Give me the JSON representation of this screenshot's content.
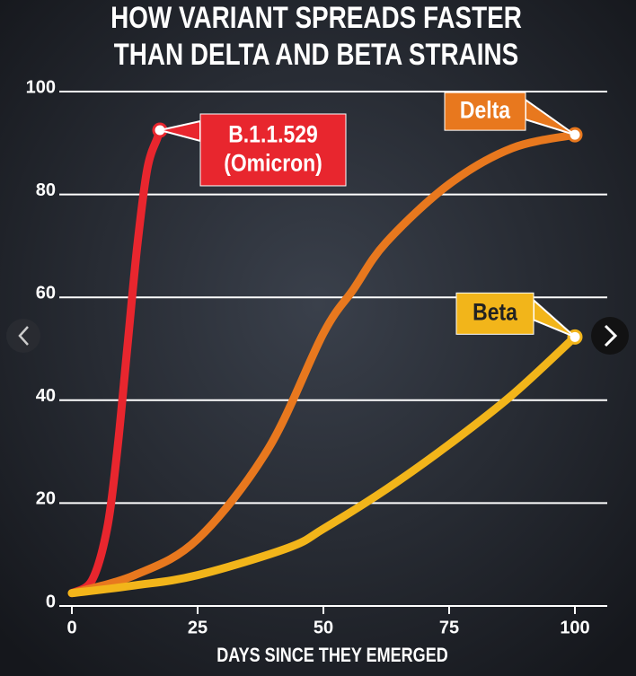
{
  "chart_data": {
    "type": "line",
    "title": [
      "HOW VARIANT SPREADS FASTER",
      "THAN DELTA AND BETA STRAINS"
    ],
    "x_label": "DAYS SINCE THEY EMERGED",
    "xlim": [
      0,
      100
    ],
    "xticks": [
      0,
      25,
      50,
      75,
      100
    ],
    "ylim": [
      0,
      100
    ],
    "yticks": [
      0,
      20,
      40,
      60,
      80,
      100
    ],
    "grid": true,
    "series": [
      {
        "name": "B.1.1.529 (Omicron)",
        "color": "#e8262e",
        "x": [
          0,
          4,
          7,
          9,
          11,
          13,
          15,
          17,
          17.5
        ],
        "values": [
          2.5,
          5,
          15,
          30,
          50,
          70,
          85,
          91,
          92.5
        ]
      },
      {
        "name": "Delta",
        "color": "#e8781e",
        "x": [
          0,
          12.5,
          25,
          39,
          50,
          56,
          62.5,
          75,
          87.5,
          100
        ],
        "values": [
          2.5,
          6,
          13,
          30.5,
          53,
          61.6,
          70.7,
          82,
          89,
          91.6
        ]
      },
      {
        "name": "Beta",
        "color": "#f2b51a",
        "x": [
          0,
          12.5,
          25,
          43,
          50,
          62.5,
          75,
          87.5,
          100
        ],
        "values": [
          2.5,
          4,
          6,
          11.3,
          15,
          22.7,
          31.4,
          41,
          52.3
        ]
      }
    ]
  }
}
